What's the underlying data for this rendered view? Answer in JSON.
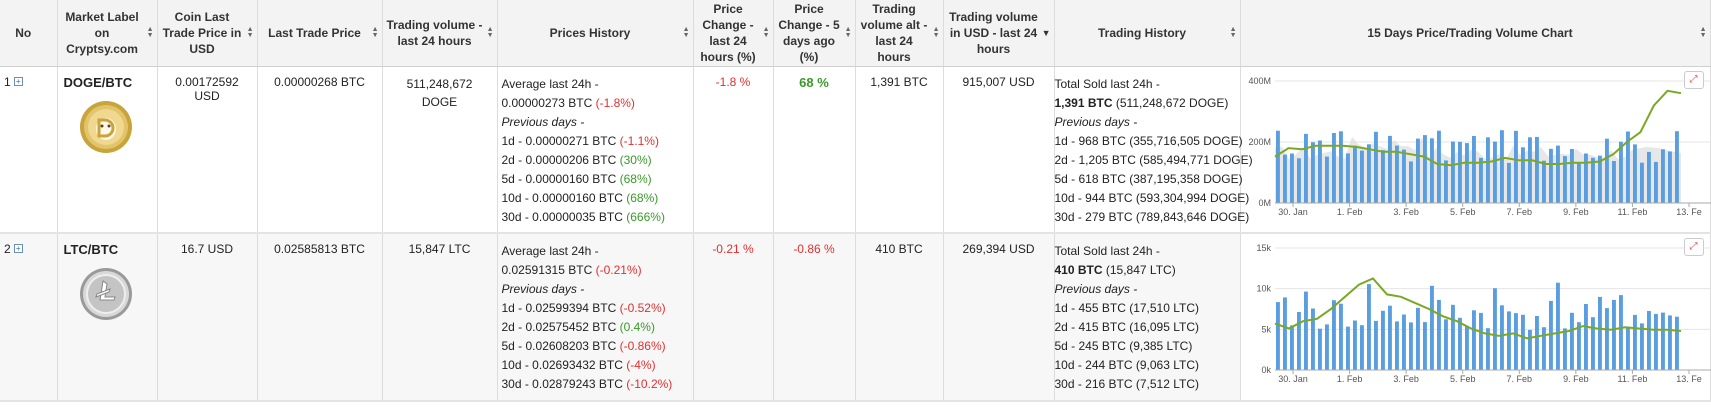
{
  "headers": {
    "no": "No",
    "market_label": "Market Label on Cryptsy.com",
    "coin_last_trade": "Coin Last Trade Price in USD",
    "last_trade_price": "Last Trade Price",
    "trading_volume": "Trading volume - last 24 hours",
    "prices_history": "Prices History",
    "price_change_24h": "Price Change - last 24 hours (%)",
    "price_change_5d": "Price Change - 5 days ago (%)",
    "trading_volume_alt": "Trading volume alt - last 24 hours",
    "trading_volume_usd": "Trading volume in USD - last 24 hours",
    "trading_history": "Trading History",
    "chart": "15 Days Price/Trading Volume Chart"
  },
  "rows": [
    {
      "no": "1",
      "pair": "DOGE/BTC",
      "coin_icon": "dogecoin-icon",
      "usd": "0.00172592 USD",
      "last_trade": "0.00000268 BTC",
      "volume": "511,248,672 DOGE",
      "avg24_label": "Average last 24h -",
      "avg24_value": "0.00000273 BTC",
      "avg24_change": "(-1.8%)",
      "prev_label": "Previous days -",
      "hist": [
        {
          "label": "1d - 0.00000271 BTC",
          "change": "(-1.1%)",
          "color": "red"
        },
        {
          "label": "2d - 0.00000206 BTC",
          "change": "(30%)",
          "color": "green"
        },
        {
          "label": "5d - 0.00000160 BTC",
          "change": "(68%)",
          "color": "green"
        },
        {
          "label": "10d - 0.00000160 BTC",
          "change": "(68%)",
          "color": "green"
        },
        {
          "label": "30d - 0.00000035 BTC",
          "change": "(666%)",
          "color": "green"
        }
      ],
      "change24": "-1.8 %",
      "change5d": "68 %",
      "vol_alt": "1,391 BTC",
      "vol_usd": "915,007 USD",
      "sold_label": "Total Sold last 24h -",
      "sold_bold": "1,391 BTC",
      "sold_rest": "(511,248,672 DOGE)",
      "trade_hist": [
        "1d - 968 BTC (355,716,505 DOGE)",
        "2d - 1,205 BTC (585,494,771 DOGE)",
        "5d - 618 BTC (387,195,358 DOGE)",
        "10d - 944 BTC (593,304,994 DOGE)",
        "30d - 279 BTC (789,843,646 DOGE)"
      ],
      "chart": {
        "y_ticks": [
          "400M",
          "200M",
          "0M"
        ],
        "x_ticks": [
          "30. Jan",
          "1. Feb",
          "3. Feb",
          "5. Feb",
          "7. Feb",
          "9. Feb",
          "11. Feb",
          "13. Fe"
        ]
      }
    },
    {
      "no": "2",
      "pair": "LTC/BTC",
      "coin_icon": "litecoin-icon",
      "usd": "16.7 USD",
      "last_trade": "0.02585813 BTC",
      "volume": "15,847 LTC",
      "avg24_label": "Average last 24h -",
      "avg24_value": "0.02591315 BTC",
      "avg24_change": "(-0.21%)",
      "prev_label": "Previous days -",
      "hist": [
        {
          "label": "1d - 0.02599394 BTC",
          "change": "(-0.52%)",
          "color": "red"
        },
        {
          "label": "2d - 0.02575452 BTC",
          "change": "(0.4%)",
          "color": "green"
        },
        {
          "label": "5d - 0.02608203 BTC",
          "change": "(-0.86%)",
          "color": "red"
        },
        {
          "label": "10d - 0.02693432 BTC",
          "change": "(-4%)",
          "color": "red"
        },
        {
          "label": "30d - 0.02879243 BTC",
          "change": "(-10.2%)",
          "color": "red"
        }
      ],
      "change24": "-0.21 %",
      "change5d": "-0.86 %",
      "vol_alt": "410 BTC",
      "vol_usd": "269,394 USD",
      "sold_label": "Total Sold last 24h -",
      "sold_bold": "410 BTC",
      "sold_rest": "(15,847 LTC)",
      "trade_hist": [
        "1d - 455 BTC (17,510 LTC)",
        "2d - 415 BTC (16,095 LTC)",
        "5d - 245 BTC (9,385 LTC)",
        "10d - 244 BTC (9,063 LTC)",
        "30d - 216 BTC (7,512 LTC)"
      ],
      "chart": {
        "y_ticks": [
          "15k",
          "10k",
          "5k",
          "0k"
        ],
        "x_ticks": [
          "30. Jan",
          "1. Feb",
          "3. Feb",
          "5. Feb",
          "7. Feb",
          "9. Feb",
          "11. Feb",
          "13. Fe"
        ]
      }
    }
  ],
  "colors": {
    "bar": "#5a9ee0",
    "line": "#7aa822",
    "area": "#dddddd",
    "red": "#e03030",
    "green": "#3a9a2a"
  }
}
